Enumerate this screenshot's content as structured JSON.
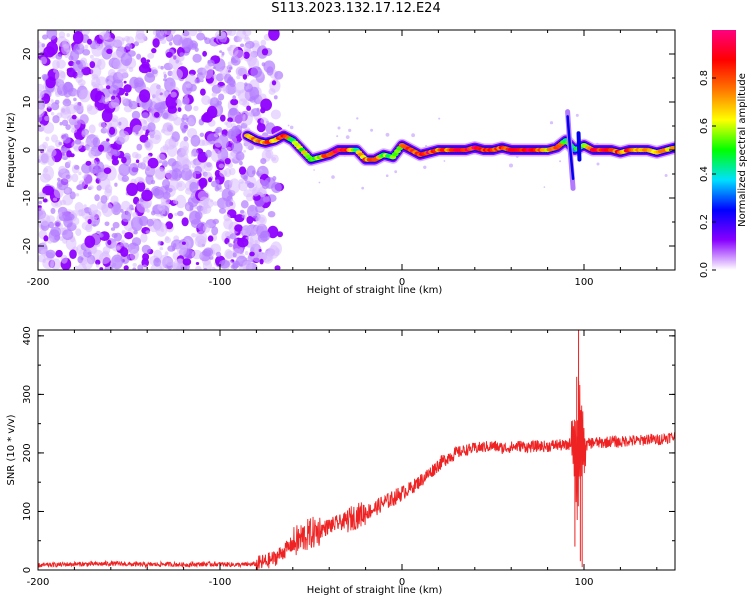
{
  "title": "S113.2023.132.17.12.E24",
  "chart_data": [
    {
      "type": "heatmap",
      "title": "S113.2023.132.17.12.E24",
      "xlabel": "Height of straight line (km)",
      "ylabel": "Frequency (Hz)",
      "xlim": [
        -200,
        150
      ],
      "ylim": [
        -25,
        25
      ],
      "x_ticks": [
        -200,
        -100,
        0,
        100
      ],
      "y_ticks": [
        -20,
        -10,
        0,
        10,
        20
      ],
      "colorbar": {
        "label": "Normalized spectral amplitude",
        "range": [
          0.0,
          1.0
        ],
        "ticks": [
          0.0,
          0.2,
          0.4,
          0.6,
          0.8
        ],
        "colormap": [
          "#ffffff",
          "#8800ff",
          "#0000ff",
          "#00e0ff",
          "#00ff00",
          "#ffff00",
          "#ff7700",
          "#ff0000",
          "#ff0080"
        ]
      },
      "noise_region_x": [
        -200,
        -75
      ],
      "ridge": {
        "x": [
          -85,
          -80,
          -75,
          -70,
          -65,
          -60,
          -55,
          -50,
          -45,
          -40,
          -35,
          -30,
          -25,
          -20,
          -15,
          -10,
          -5,
          0,
          5,
          10,
          15,
          20,
          25,
          30,
          35,
          40,
          45,
          50,
          55,
          60,
          65,
          70,
          75,
          80,
          85,
          90,
          95,
          100,
          105,
          110,
          115,
          120,
          125,
          130,
          135,
          140,
          145,
          150
        ],
        "frequency": [
          3,
          2,
          1.5,
          2,
          3,
          2,
          0,
          -2,
          -1.5,
          -1,
          0,
          0,
          0,
          -2,
          -2,
          -1,
          -1.5,
          1,
          0,
          -1,
          -0.5,
          0,
          0,
          0,
          0,
          0.5,
          0,
          0,
          0.5,
          0,
          0,
          0,
          0,
          0,
          0.5,
          2,
          0,
          1,
          0,
          0,
          0,
          -0.5,
          0,
          0,
          0,
          -0.5,
          0,
          0.5
        ],
        "amplitude": [
          0.6,
          0.75,
          0.8,
          0.7,
          0.8,
          0.5,
          0.6,
          0.55,
          0.6,
          0.85,
          0.9,
          0.85,
          0.5,
          0.75,
          0.8,
          0.5,
          0.5,
          0.7,
          0.85,
          0.8,
          0.9,
          0.7,
          0.8,
          0.9,
          0.85,
          0.9,
          0.8,
          0.85,
          0.8,
          0.9,
          0.8,
          0.9,
          0.85,
          0.6,
          0.9,
          0.5,
          0.4,
          0.55,
          0.85,
          0.9,
          0.8,
          0.75,
          0.8,
          0.7,
          0.75,
          0.6,
          0.65,
          0.6
        ]
      }
    },
    {
      "type": "line",
      "xlabel": "Height of straight line (km)",
      "ylabel": "SNR (10 * v/v)",
      "xlim": [
        -200,
        150
      ],
      "ylim": [
        0,
        410
      ],
      "x_ticks": [
        -200,
        -100,
        0,
        100
      ],
      "y_ticks": [
        0,
        100,
        200,
        300,
        400
      ],
      "color": "#ee2222",
      "x": [
        -200,
        -190,
        -180,
        -170,
        -160,
        -150,
        -140,
        -130,
        -120,
        -110,
        -100,
        -90,
        -80,
        -75,
        -70,
        -65,
        -60,
        -55,
        -50,
        -45,
        -40,
        -35,
        -30,
        -25,
        -20,
        -15,
        -10,
        -5,
        0,
        5,
        10,
        15,
        20,
        25,
        30,
        35,
        40,
        45,
        50,
        55,
        60,
        65,
        70,
        75,
        80,
        85,
        90,
        92,
        94,
        96,
        98,
        100,
        102,
        105,
        110,
        115,
        120,
        125,
        130,
        135,
        140,
        145,
        150
      ],
      "values": [
        8,
        9,
        10,
        10,
        11,
        10,
        9,
        10,
        9,
        10,
        10,
        9,
        10,
        14,
        20,
        32,
        45,
        55,
        62,
        68,
        75,
        80,
        85,
        92,
        98,
        105,
        115,
        122,
        132,
        140,
        152,
        165,
        180,
        192,
        200,
        205,
        208,
        210,
        212,
        208,
        210,
        212,
        210,
        212,
        211,
        214,
        212,
        215,
        225,
        170,
        240,
        205,
        215,
        218,
        217,
        220,
        218,
        222,
        220,
        224,
        222,
        226,
        228
      ],
      "spikes": [
        {
          "x": 96,
          "y": 330
        },
        {
          "x": 97,
          "y": 410
        },
        {
          "x": 98,
          "y": 15
        },
        {
          "x": 99,
          "y": 5
        },
        {
          "x": 95,
          "y": 40
        }
      ]
    }
  ]
}
